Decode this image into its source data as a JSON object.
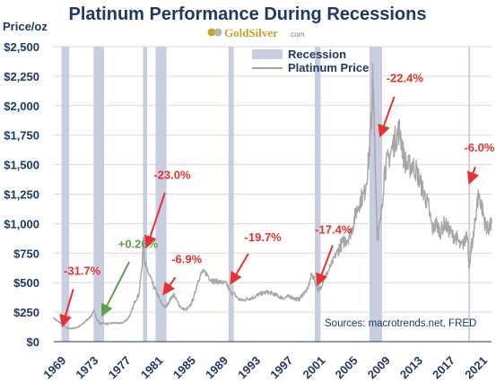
{
  "chart_data": {
    "type": "line",
    "title": "Platinum Performance During Recessions",
    "logo": {
      "brand": "GoldSilver",
      "suffix": ".com"
    },
    "ylabel": "Price/oz",
    "ylim": [
      0,
      2500
    ],
    "xlim": [
      1969,
      2023
    ],
    "y_ticks": [
      {
        "value": 0,
        "label": "$0"
      },
      {
        "value": 250,
        "label": "$250"
      },
      {
        "value": 500,
        "label": "$500"
      },
      {
        "value": 750,
        "label": "$750"
      },
      {
        "value": 1000,
        "label": "$1,000"
      },
      {
        "value": 1250,
        "label": "$1,250"
      },
      {
        "value": 1500,
        "label": "$1,500"
      },
      {
        "value": 1750,
        "label": "$1,750"
      },
      {
        "value": 2000,
        "label": "$2,000"
      },
      {
        "value": 2250,
        "label": "$2,250"
      },
      {
        "value": 2500,
        "label": "$2,500"
      }
    ],
    "x_ticks": [
      "1969",
      "1973",
      "1977",
      "1981",
      "1985",
      "1989",
      "1993",
      "1997",
      "2001",
      "2005",
      "2009",
      "2013",
      "2017",
      "2021"
    ],
    "grid": "horizontal",
    "legend": {
      "placement": "top-center",
      "recession_label": "Recession",
      "price_label": "Platinum Price"
    },
    "colors": {
      "recession": "#c8cde0",
      "price": "#a6a6a6",
      "negative": "#e8312f",
      "positive": "#5f9e4a",
      "text": "#1f3864",
      "grid": "#d9d9d9"
    },
    "recessions": [
      {
        "start": 1969.95,
        "end": 1970.9
      },
      {
        "start": 1973.9,
        "end": 1975.2
      },
      {
        "start": 1980.0,
        "end": 1980.5
      },
      {
        "start": 1981.55,
        "end": 1982.9
      },
      {
        "start": 1990.55,
        "end": 1991.2
      },
      {
        "start": 2001.2,
        "end": 2001.9
      },
      {
        "start": 2007.95,
        "end": 2009.5
      },
      {
        "start": 2020.15,
        "end": 2020.35
      }
    ],
    "series": [
      {
        "x": [
          1969.0,
          1969.5,
          1970.0,
          1970.5,
          1971.0,
          1971.5,
          1972.0,
          1972.5,
          1973.0,
          1973.5,
          1974.0,
          1974.3,
          1974.7,
          1975.0,
          1975.5,
          1976.0,
          1976.5,
          1977.0,
          1977.5,
          1978.0,
          1978.5,
          1979.0,
          1979.5,
          1979.9,
          1980.1,
          1980.2,
          1980.5,
          1980.9,
          1981.3,
          1981.8,
          1982.3,
          1982.8,
          1983.3,
          1983.8,
          1984.3,
          1984.8,
          1985.3,
          1985.8,
          1986.3,
          1986.8,
          1987.3,
          1987.8,
          1988.3,
          1988.8,
          1989.3,
          1989.8,
          1990.3,
          1990.8,
          1991.3,
          1991.8,
          1992.3,
          1992.8,
          1993.3,
          1993.8,
          1994.3,
          1994.8,
          1995.3,
          1995.8,
          1996.3,
          1996.8,
          1997.3,
          1997.8,
          1998.3,
          1998.8,
          1999.3,
          1999.8,
          2000.3,
          2000.8,
          2001.2,
          2001.6,
          2001.9,
          2002.3,
          2002.8,
          2003.3,
          2003.8,
          2004.3,
          2004.8,
          2005.3,
          2005.8,
          2006.3,
          2006.8,
          2007.3,
          2007.8,
          2008.2,
          2008.35,
          2008.6,
          2008.9,
          2009.3,
          2009.8,
          2010.3,
          2010.8,
          2011.3,
          2011.7,
          2012.2,
          2012.7,
          2013.2,
          2013.7,
          2014.2,
          2014.7,
          2015.2,
          2015.7,
          2016.2,
          2016.7,
          2017.2,
          2017.7,
          2018.2,
          2018.7,
          2019.2,
          2019.7,
          2020.0,
          2020.25,
          2020.5,
          2020.8,
          2021.1,
          2021.4,
          2021.8,
          2022.2,
          2022.6,
          2023.0
        ],
        "y": [
          200,
          170,
          155,
          120,
          110,
          115,
          125,
          145,
          180,
          210,
          260,
          190,
          150,
          160,
          150,
          155,
          160,
          155,
          160,
          185,
          235,
          340,
          400,
          650,
          900,
          700,
          600,
          550,
          470,
          400,
          320,
          290,
          350,
          400,
          330,
          280,
          270,
          300,
          380,
          520,
          590,
          580,
          530,
          510,
          510,
          500,
          490,
          420,
          400,
          360,
          350,
          360,
          370,
          380,
          400,
          410,
          420,
          410,
          400,
          380,
          370,
          380,
          380,
          360,
          360,
          410,
          440,
          570,
          520,
          440,
          450,
          530,
          590,
          660,
          740,
          810,
          850,
          880,
          960,
          1100,
          1200,
          1250,
          1500,
          1900,
          2250,
          1650,
          900,
          1000,
          1450,
          1550,
          1650,
          1750,
          1800,
          1550,
          1480,
          1500,
          1450,
          1350,
          1250,
          1150,
          950,
          1000,
          930,
          1000,
          950,
          900,
          880,
          800,
          850,
          950,
          600,
          800,
          900,
          1100,
          1250,
          1150,
          1000,
          950,
          1000
        ]
      }
    ],
    "annotations": [
      {
        "text": "-31.7%",
        "color": "negative",
        "label_x": 1972.5,
        "label_y": 565,
        "arrow_from": [
          1971.4,
          445
        ],
        "arrow_to": [
          1970.1,
          140
        ]
      },
      {
        "text": "+0.26%",
        "color": "positive",
        "label_x": 1979.4,
        "label_y": 795,
        "arrow_from": [
          1978.3,
          675
        ],
        "arrow_to": [
          1975.0,
          230
        ]
      },
      {
        "text": "-23.0%",
        "color": "negative",
        "label_x": 1983.6,
        "label_y": 1380,
        "arrow_from": [
          1982.7,
          1260
        ],
        "arrow_to": [
          1980.5,
          810
        ]
      },
      {
        "text": "-6.9%",
        "color": "negative",
        "label_x": 1985.4,
        "label_y": 665,
        "arrow_from": [
          1984.0,
          545
        ],
        "arrow_to": [
          1982.6,
          410
        ]
      },
      {
        "text": "-19.7%",
        "color": "negative",
        "label_x": 1994.8,
        "label_y": 850,
        "arrow_from": [
          1993.0,
          745
        ],
        "arrow_to": [
          1990.9,
          500
        ]
      },
      {
        "text": "-17.4%",
        "color": "negative",
        "label_x": 2003.5,
        "label_y": 915,
        "arrow_from": [
          2003.4,
          815
        ],
        "arrow_to": [
          2001.6,
          490
        ]
      },
      {
        "text": "-22.4%",
        "color": "negative",
        "label_x": 2012.3,
        "label_y": 2200,
        "arrow_from": [
          2011.0,
          2075
        ],
        "arrow_to": [
          2009.3,
          1750
        ]
      },
      {
        "text": "-6.0%",
        "color": "negative",
        "label_x": 2021.5,
        "label_y": 1610,
        "arrow_from": [
          2021.0,
          1480
        ],
        "arrow_to": [
          2020.3,
          1350
        ]
      }
    ],
    "source": "Sources: macrotrends.net, FRED"
  }
}
